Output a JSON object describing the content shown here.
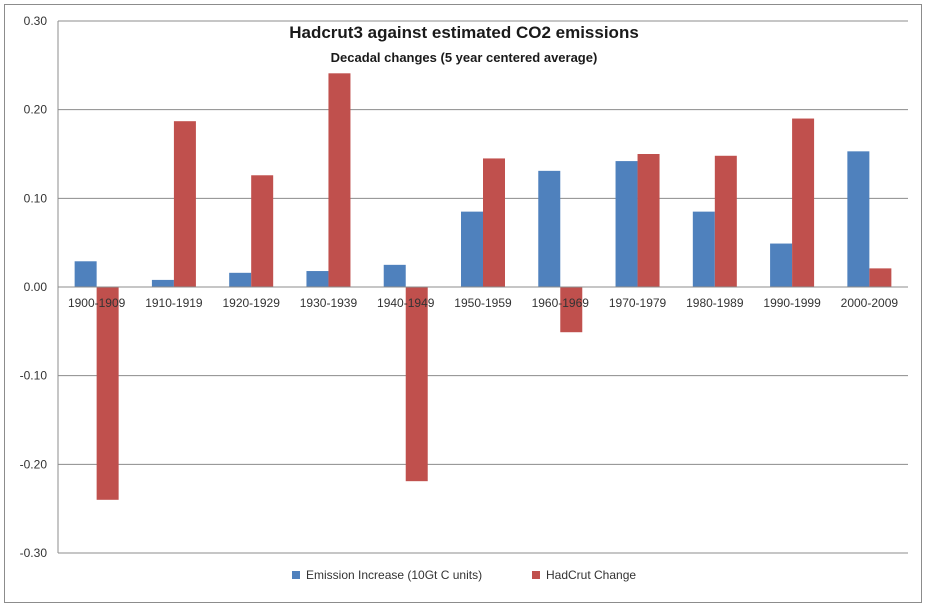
{
  "chart_data": {
    "type": "bar",
    "title": "Hadcrut3 against estimated CO2 emissions",
    "subtitle": "Decadal changes (5 year centered average)",
    "xlabel": "",
    "ylabel": "",
    "ylim": [
      -0.3,
      0.3
    ],
    "yticks": [
      "0.30",
      "0.20",
      "0.10",
      "0.00",
      "-0.10",
      "-0.20",
      "-0.30"
    ],
    "categories": [
      "1900-1909",
      "1910-1919",
      "1920-1929",
      "1930-1939",
      "1940-1949",
      "1950-1959",
      "1960-1969",
      "1970-1979",
      "1980-1989",
      "1990-1999",
      "2000-2009"
    ],
    "series": [
      {
        "name": "Emission Increase (10Gt C units)",
        "color": "#4f81bd",
        "values": [
          0.029,
          0.008,
          0.016,
          0.018,
          0.025,
          0.085,
          0.131,
          0.142,
          0.085,
          0.049,
          0.153
        ]
      },
      {
        "name": "HadCrut Change",
        "color": "#c0504d",
        "values": [
          -0.24,
          0.187,
          0.126,
          0.241,
          -0.219,
          0.145,
          -0.051,
          0.15,
          0.148,
          0.19,
          0.021
        ]
      }
    ],
    "grid": true,
    "legend_position": "bottom"
  }
}
